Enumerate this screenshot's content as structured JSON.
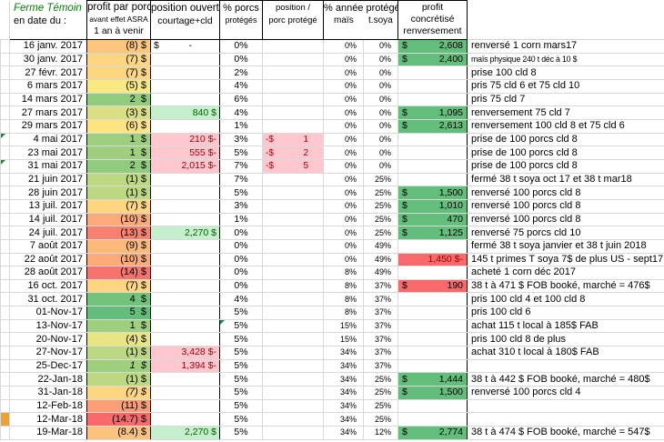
{
  "header": {
    "farm": {
      "line1": "Ferme Témoin",
      "line2": "en date du :"
    },
    "profit": {
      "line1": "profit par porc",
      "line2": "avant effet ASRA",
      "line3": "1 an à venir"
    },
    "open": {
      "line1": "position ouverte",
      "line2": "courtage+cld"
    },
    "pct": {
      "line1": "% porcs",
      "line2": "protégés"
    },
    "pos": {
      "line1": "position /",
      "line2": "porc protégé"
    },
    "year": {
      "line1": "% année protégé",
      "corn": "maïs",
      "soy": "t.soya"
    },
    "real": {
      "line1": "profit",
      "line2": "concrétisé",
      "line3": "renversement"
    }
  },
  "colors": {
    "good_bg": "#C6EFCE",
    "good_text": "#006100",
    "bad_bg": "#FFC7CE",
    "bad_text": "#9C0006",
    "real_green": "#63BE7B",
    "real_red": "#F8696B",
    "scale_red": "#F8696B",
    "scale_yellow": "#FFEB84",
    "scale_green": "#63BE7B",
    "header_green_text": "#008000",
    "marker_orange": "#F0A22E",
    "comment_triangle": "#1d8348"
  },
  "rows": [
    {
      "date": "16 janv. 2017",
      "profit": "(8) $",
      "profit_bg": "#FDC87D",
      "open": "-",
      "open_type": "dash",
      "pct": "0%",
      "pos": "",
      "corn": "0%",
      "soy": "0%",
      "real": "2,608",
      "real_type": "green",
      "note": "renversé 1 corn mars17"
    },
    {
      "date": "30 janv. 2017",
      "profit": "(7) $",
      "profit_bg": "#FED680",
      "open": "",
      "open_type": "",
      "pct": "0%",
      "pos": "",
      "corn": "0%",
      "soy": "0%",
      "real": "2,400",
      "real_type": "green",
      "note": "maïs physique 240 t déc à 10 $",
      "note_small": true
    },
    {
      "date": "27 févr. 2017",
      "profit": "(7) $",
      "profit_bg": "#FED680",
      "open": "",
      "open_type": "",
      "pct": "2%",
      "pos": "",
      "corn": "0%",
      "soy": "0%",
      "real": "",
      "real_type": "",
      "note": "prise 100 cld 8"
    },
    {
      "date": "6 mars 2017",
      "profit": "(5) $",
      "profit_bg": "#F8E984",
      "open": "",
      "open_type": "",
      "pct": "4%",
      "pos": "",
      "corn": "0%",
      "soy": "0%",
      "real": "",
      "real_type": "",
      "note": "pris 75 cld 6 et 75 cld 10"
    },
    {
      "date": "14 mars 2017",
      "profit": "2  $",
      "profit_bg": "#90CB7E",
      "open": "",
      "open_type": "",
      "pct": "6%",
      "pos": "",
      "corn": "0%",
      "soy": "0%",
      "real": "",
      "real_type": "",
      "note": "pris 75 cld 7"
    },
    {
      "date": "27 mars 2017",
      "profit": "(3) $",
      "profit_bg": "#DAE082",
      "open": "840 $",
      "open_type": "gain",
      "pct": "4%",
      "pos": "",
      "corn": "0%",
      "soy": "0%",
      "real": "1,095",
      "real_type": "green",
      "note": "renversement 75 cld 7"
    },
    {
      "date": "29 mars 2017",
      "profit": "(6) $",
      "profit_bg": "#FFE483",
      "open": "",
      "open_type": "",
      "pct": "1%",
      "pos": "",
      "corn": "0%",
      "soy": "0%",
      "real": "2,613",
      "real_type": "green",
      "note": "renversement 100 cld 8 et 75  cld 6"
    },
    {
      "date": "4 mai 2017",
      "profit": "1  $",
      "profit_bg": "#9ECF7E",
      "open": "210 $-",
      "open_type": "loss",
      "pct": "3%",
      "pos": "1",
      "corn": "0%",
      "soy": "0%",
      "real": "",
      "real_type": "",
      "note": "prise de 100 porcs cld 8",
      "marker": "tri"
    },
    {
      "date": "23 mai 2017",
      "profit": "1  $",
      "profit_bg": "#9ECF7E",
      "open": "555 $-",
      "open_type": "loss",
      "pct": "5%",
      "pos": "2",
      "corn": "0%",
      "soy": "0%",
      "real": "",
      "real_type": "",
      "note": "prise de 100 porcs cld 8"
    },
    {
      "date": "31 mai 2017",
      "profit": "2  $",
      "profit_bg": "#90CB7E",
      "open": "2,015 $-",
      "open_type": "loss",
      "pct": "7%",
      "pos": "5",
      "corn": "0%",
      "soy": "0%",
      "real": "",
      "real_type": "",
      "note": "prise de 100 porcs cld 8",
      "marker": "tri"
    },
    {
      "date": "21 juin 2017",
      "profit": "(1) $",
      "profit_bg": "#BCD880",
      "open": "",
      "open_type": "",
      "pct": "7%",
      "pos": "",
      "corn": "0%",
      "soy": "25%",
      "real": "",
      "real_type": "",
      "note": "fermé 38 t soya oct 17 et 38 t mar18"
    },
    {
      "date": "28 juin 2017",
      "profit": "(1) $",
      "profit_bg": "#BCD880",
      "open": "",
      "open_type": "",
      "pct": "5%",
      "pos": "",
      "corn": "0%",
      "soy": "25%",
      "real": "1,500",
      "real_type": "green",
      "note": "renversé 100 porcs cld 8"
    },
    {
      "date": "13 juil. 2017",
      "profit": "(7) $",
      "profit_bg": "#FED680",
      "open": "",
      "open_type": "",
      "pct": "3%",
      "pos": "",
      "corn": "0%",
      "soy": "25%",
      "real": "1,010",
      "real_type": "green",
      "note": "renversé 100 porcs cld 8"
    },
    {
      "date": "14 juil. 2017",
      "profit": "(10) $",
      "profit_bg": "#FCAB78",
      "open": "",
      "open_type": "",
      "pct": "1%",
      "pos": "",
      "corn": "0%",
      "soy": "25%",
      "real": "470",
      "real_type": "green",
      "note": "renversé 100 porcs cld 8"
    },
    {
      "date": "24 juil. 2017",
      "profit": "(13) $",
      "profit_bg": "#F98170",
      "open": "2,270 $",
      "open_type": "gain",
      "pct": "0%",
      "pos": "",
      "corn": "0%",
      "soy": "25%",
      "real": "1,125",
      "real_type": "green",
      "note": "renversé 75 porcs cld 10"
    },
    {
      "date": "7 août 2017",
      "profit": "(9) $",
      "profit_bg": "#FCBA7A",
      "open": "",
      "open_type": "",
      "pct": "0%",
      "pos": "",
      "corn": "0%",
      "soy": "49%",
      "real": "",
      "real_type": "",
      "note": "fermé 38 t soya janvier et 38 t juin 2018"
    },
    {
      "date": "22 août 2017",
      "profit": "(10) $",
      "profit_bg": "#FCAB78",
      "open": "",
      "open_type": "",
      "pct": "0%",
      "pos": "",
      "corn": "0%",
      "soy": "49%",
      "real": "1,450 $-",
      "real_type": "reddark",
      "note": "145 t  primes T soya 7$ de plus US - sept17"
    },
    {
      "date": "28 août 2017",
      "profit": "(14) $",
      "profit_bg": "#F9736D",
      "open": "",
      "open_type": "",
      "pct": "0%",
      "pos": "",
      "corn": "8%",
      "soy": "49%",
      "real": "",
      "real_type": "",
      "note": "acheté 1 corn déc 2017"
    },
    {
      "date": "16 oct. 2017",
      "profit": "(7) $",
      "profit_bg": "#FED680",
      "open": "",
      "open_type": "",
      "pct": "0%",
      "pos": "",
      "corn": "8%",
      "soy": "37%",
      "real": "190",
      "real_type": "red",
      "note": "38 t  à 471 $ FOB booké, marché = 476$"
    },
    {
      "date": "31 oct. 2017",
      "profit": "4  $",
      "profit_bg": "#72C27C",
      "open": "",
      "open_type": "",
      "pct": "4%",
      "pos": "",
      "corn": "8%",
      "soy": "37%",
      "real": "",
      "real_type": "",
      "note": "pris 100 cld 4  et 100 cld  8"
    },
    {
      "date": "01-Nov-17",
      "profit": "5  $",
      "profit_bg": "#63BE7B",
      "open": "",
      "open_type": "",
      "pct": "5%",
      "pos": "",
      "corn": "8%",
      "soy": "37%",
      "real": "",
      "real_type": "",
      "note": "pris 100 cld 6"
    },
    {
      "date": "13-Nov-17",
      "profit": "1  $",
      "profit_bg": "#9ECF7E",
      "open": "",
      "open_type": "",
      "pct": "5%",
      "pct_tri": true,
      "pos": "",
      "corn": "15%",
      "soy": "37%",
      "real": "",
      "real_type": "",
      "note": "achat 115 t  local à 185$ FAB"
    },
    {
      "date": "20-Nov-17",
      "profit": "(4) $",
      "profit_bg": "#E9E583",
      "open": "",
      "open_type": "",
      "pct": "5%",
      "pos": "",
      "corn": "15%",
      "soy": "37%",
      "real": "",
      "real_type": "",
      "note": "pris 100 cld 8 de plus"
    },
    {
      "date": "27-Nov-17",
      "profit": "(1) $",
      "profit_bg": "#BCD880",
      "open": "3,428 $-",
      "open_type": "loss",
      "pct": "5%",
      "pos": "",
      "corn": "34%",
      "soy": "37%",
      "real": "",
      "real_type": "",
      "note": "achat 310 t  local à 180$ FAB"
    },
    {
      "date": "25-Dec-17",
      "profit": "1  $",
      "profit_bg": "#9ECF7E",
      "profit_italic": true,
      "open": "1,394 $-",
      "open_type": "loss",
      "pct": "5%",
      "pos": "",
      "corn": "34%",
      "soy": "37%",
      "real": "",
      "real_type": "",
      "note": ""
    },
    {
      "date": "22-Jan-18",
      "profit": "(1) $",
      "profit_bg": "#BCD880",
      "open": "",
      "open_type": "",
      "pct": "5%",
      "pos": "",
      "corn": "34%",
      "soy": "25%",
      "real": "1,444",
      "real_type": "green",
      "note": "38 t  à 442 $ FOB booké, marché = 480$"
    },
    {
      "date": "31-Jan-18",
      "profit": "(7) $",
      "profit_bg": "#FED680",
      "profit_italic": true,
      "open": "",
      "open_type": "",
      "pct": "5%",
      "pos": "",
      "corn": "34%",
      "soy": "25%",
      "real": "1,500",
      "real_type": "green",
      "note": "renversé 100 porcs cld 4"
    },
    {
      "date": "12-Feb-18",
      "profit": "(11) $",
      "profit_bg": "#FB9D75",
      "open": "",
      "open_type": "",
      "pct": "5%",
      "pos": "",
      "corn": "34%",
      "soy": "25%",
      "real": "",
      "real_type": "",
      "note": ""
    },
    {
      "date": "12-Mar-18",
      "profit": "(14.7) $",
      "profit_bg": "#F8696B",
      "open": "",
      "open_type": "",
      "pct": "5%",
      "pos": "",
      "corn": "34%",
      "soy": "25%",
      "real": "",
      "real_type": "",
      "note": "",
      "marker": "orange"
    },
    {
      "date": "19-Mar-18",
      "profit": "(8.4) $",
      "profit_bg": "#FDC27C",
      "open": "2,270 $",
      "open_type": "gain",
      "pct": "5%",
      "pos": "",
      "corn": "34%",
      "soy": "12%",
      "real": "2,774",
      "real_type": "green",
      "note": "38 t  à 474 $ FOB booké, marché = 547$"
    }
  ]
}
